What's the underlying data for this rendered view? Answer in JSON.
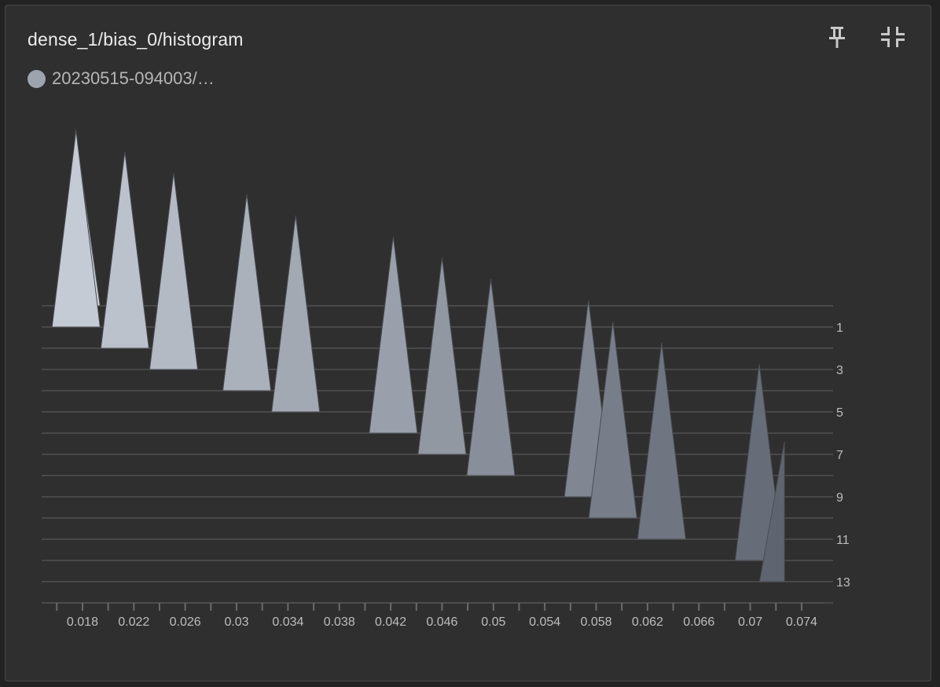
{
  "card": {
    "title": "dense_1/bias_0/histogram",
    "legend_label": "20230515-094003/…",
    "legend_color": "#9ea4ad"
  },
  "toolbar": {
    "pin_icon": "pin-icon",
    "collapse_icon": "fullscreen-exit-icon"
  },
  "chart_data": {
    "type": "histogram-offset",
    "title": "dense_1/bias_0/histogram",
    "x_ticks": [
      "0.018",
      "0.022",
      "0.026",
      "0.03",
      "0.034",
      "0.038",
      "0.042",
      "0.046",
      "0.05",
      "0.054",
      "0.058",
      "0.062",
      "0.066",
      "0.07",
      "0.074"
    ],
    "y_ticks": [
      "1",
      "3",
      "5",
      "7",
      "9",
      "11",
      "13"
    ],
    "xlim": [
      0.0158,
      0.0748
    ],
    "ylim": [
      0,
      14
    ],
    "peak_x": [
      0.0175,
      0.0175,
      0.0213,
      0.0251,
      0.0308,
      0.0346,
      0.0422,
      0.046,
      0.0498,
      0.0574,
      0.0593,
      0.0631,
      0.0707,
      0.0726
    ],
    "half_width": 0.00187,
    "color_range": [
      "#cdd3dd",
      "#5f6570"
    ]
  }
}
